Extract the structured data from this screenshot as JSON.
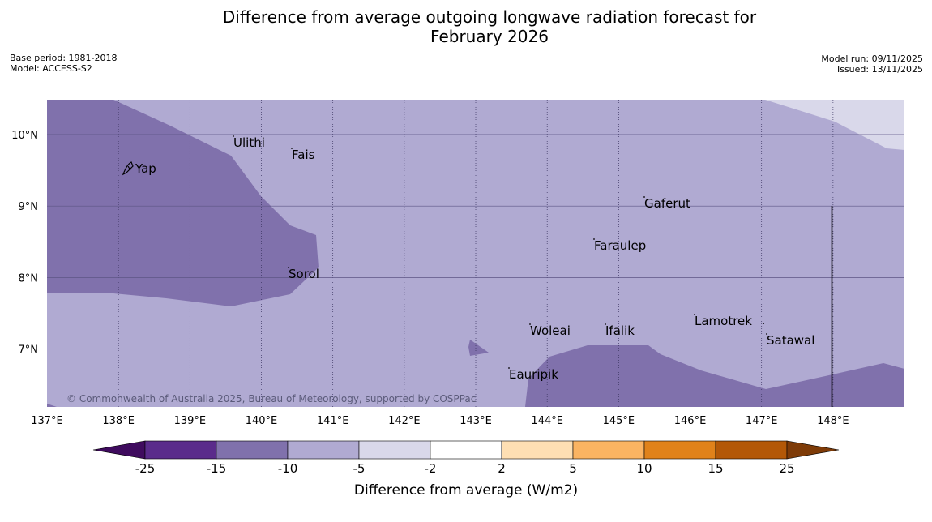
{
  "title": {
    "line1": "Difference from average outgoing longwave radiation forecast for",
    "line2": "February 2026"
  },
  "meta_left": {
    "base_period": "Base period: 1981-2018",
    "model": "Model: ACCESS-S2"
  },
  "meta_right": {
    "model_run": "Model run: 09/11/2025",
    "issued": "Issued: 13/11/2025"
  },
  "map": {
    "lon_range": [
      137,
      149
    ],
    "lat_range": [
      6.2,
      10.5
    ],
    "lon_ticks": [
      "137°E",
      "138°E",
      "139°E",
      "140°E",
      "141°E",
      "142°E",
      "143°E",
      "144°E",
      "145°E",
      "146°E",
      "147°E",
      "148°E"
    ],
    "lat_ticks": [
      "10°N",
      "9°N",
      "8°N",
      "7°N"
    ],
    "places": [
      {
        "name": "Yap"
      },
      {
        "name": "Ulithi"
      },
      {
        "name": "Fais"
      },
      {
        "name": "Gaferut"
      },
      {
        "name": "Faraulep"
      },
      {
        "name": "Sorol"
      },
      {
        "name": "Lamotrek"
      },
      {
        "name": "Woleai"
      },
      {
        "name": "Ifalik"
      },
      {
        "name": "Satawal"
      },
      {
        "name": "Eauripik"
      }
    ],
    "copyright": "© Commonwealth of Australia 2025, Bureau of Meteorology, supported by COSPPac",
    "colors": {
      "band_minus10_minus5": "#b0aad2",
      "band_minus15_minus10": "#8071ac",
      "band_minus5_minus2": "#d9d8ea"
    }
  },
  "colorbar": {
    "title": "Difference from average (W/m2)",
    "labels": [
      "-25",
      "-15",
      "-10",
      "-5",
      "-2",
      "2",
      "5",
      "10",
      "15",
      "25"
    ],
    "colors": [
      "#3f0b5e",
      "#5a2b8b",
      "#8071ac",
      "#b0aad2",
      "#d9d8ea",
      "#ffffff",
      "#fedfb3",
      "#fbb462",
      "#e0821a",
      "#b35807",
      "#7e3b08"
    ]
  }
}
